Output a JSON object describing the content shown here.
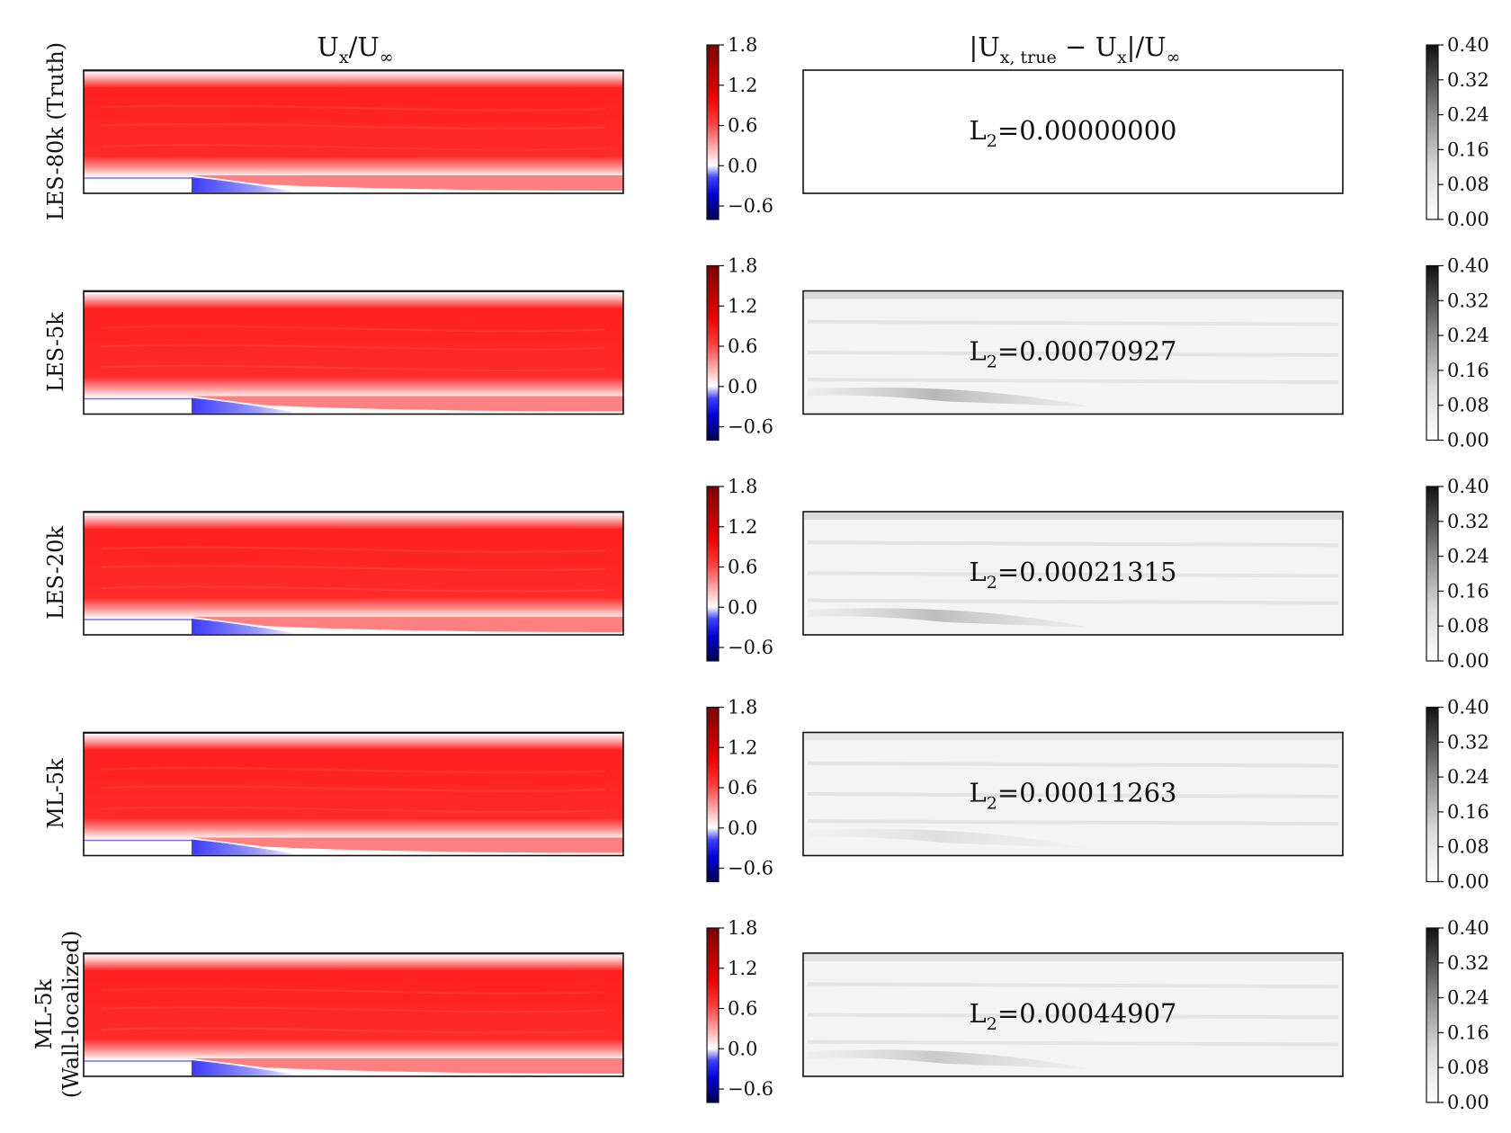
{
  "columns": {
    "velocity": {
      "main": "U",
      "sub": "x",
      "slash": "/U",
      "inf": "∞"
    },
    "error": {
      "bar1": "|U",
      "sub1": "x, true",
      "minus": " − U",
      "sub2": "x",
      "bar2": "|/U",
      "inf": "∞"
    }
  },
  "colorbars": {
    "velocity": {
      "ticks": [
        "1.8",
        "1.2",
        "0.6",
        "0.0",
        "−0.6"
      ],
      "tick_values": [
        1.8,
        1.2,
        0.6,
        0.0,
        -0.6
      ],
      "range": [
        -0.8,
        1.8
      ],
      "colormap": "seismic"
    },
    "error": {
      "ticks": [
        "0.40",
        "0.32",
        "0.24",
        "0.16",
        "0.08",
        "0.00"
      ],
      "tick_values": [
        0.4,
        0.32,
        0.24,
        0.16,
        0.08,
        0.0
      ],
      "range": [
        0.0,
        0.4
      ],
      "colormap": "greys"
    }
  },
  "rows": [
    {
      "label": [
        "LES-80k (Truth)"
      ],
      "l2_prefix": "L",
      "l2_sub": "2",
      "l2_value": "=0.00000000"
    },
    {
      "label": [
        "LES-5k"
      ],
      "l2_prefix": "L",
      "l2_sub": "2",
      "l2_value": "=0.00070927"
    },
    {
      "label": [
        "LES-20k"
      ],
      "l2_prefix": "L",
      "l2_sub": "2",
      "l2_value": "=0.00021315"
    },
    {
      "label": [
        "ML-5k"
      ],
      "l2_prefix": "L",
      "l2_sub": "2",
      "l2_value": "=0.00011263"
    },
    {
      "label": [
        "ML-5k",
        "(Wall-localized)"
      ],
      "l2_prefix": "L",
      "l2_sub": "2",
      "l2_value": "=0.00044907"
    }
  ],
  "chart_data": {
    "type": "heatmap",
    "panels": [
      {
        "case": "LES-80k (Truth)",
        "velocity_field": "Ux/U∞",
        "error_field": "|Ux,true − Ux|/U∞",
        "L2": 0.0
      },
      {
        "case": "LES-5k",
        "velocity_field": "Ux/U∞",
        "error_field": "|Ux,true − Ux|/U∞",
        "L2": 0.00070927
      },
      {
        "case": "LES-20k",
        "velocity_field": "Ux/U∞",
        "error_field": "|Ux,true − Ux|/U∞",
        "L2": 0.00021315
      },
      {
        "case": "ML-5k",
        "velocity_field": "Ux/U∞",
        "error_field": "|Ux,true − Ux|/U∞",
        "L2": 0.00011263
      },
      {
        "case": "ML-5k (Wall-localized)",
        "velocity_field": "Ux/U∞",
        "error_field": "|Ux,true − Ux|/U∞",
        "L2": 0.00044907
      }
    ],
    "velocity_colorbar_range": [
      -0.8,
      1.8
    ],
    "error_colorbar_range": [
      0.0,
      0.4
    ]
  }
}
